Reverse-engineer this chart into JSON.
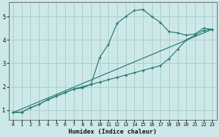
{
  "xlabel": "Humidex (Indice chaleur)",
  "bg_color": "#cce8e8",
  "grid_color": "#aacccc",
  "line_color": "#2a7870",
  "xlim": [
    -0.5,
    23.5
  ],
  "ylim": [
    0.6,
    5.6
  ],
  "yticks": [
    1,
    2,
    3,
    4,
    5
  ],
  "xticks": [
    0,
    1,
    2,
    3,
    4,
    5,
    6,
    7,
    8,
    9,
    10,
    11,
    12,
    13,
    14,
    15,
    16,
    17,
    18,
    19,
    20,
    21,
    22,
    23
  ],
  "line1_x": [
    0,
    1,
    2,
    3,
    4,
    5,
    6,
    7,
    8,
    9,
    10,
    11,
    12,
    13,
    14,
    15,
    16,
    17,
    18,
    19,
    20,
    21,
    22,
    23
  ],
  "line1_y": [
    0.9,
    0.92,
    1.1,
    1.25,
    1.45,
    1.6,
    1.75,
    1.9,
    1.95,
    2.1,
    3.25,
    3.8,
    4.7,
    5.0,
    5.25,
    5.3,
    5.0,
    4.75,
    4.35,
    4.3,
    4.2,
    4.25,
    4.5,
    4.45
  ],
  "line2_x": [
    0,
    1,
    2,
    3,
    4,
    5,
    6,
    7,
    8,
    9,
    10,
    11,
    12,
    13,
    14,
    15,
    16,
    17,
    18,
    19,
    20,
    21,
    22,
    23
  ],
  "line2_y": [
    0.9,
    0.92,
    1.1,
    1.25,
    1.45,
    1.6,
    1.75,
    1.9,
    2.0,
    2.1,
    2.2,
    2.3,
    2.4,
    2.5,
    2.6,
    2.7,
    2.8,
    2.9,
    3.2,
    3.6,
    4.0,
    4.2,
    4.4,
    4.45
  ],
  "line3_x": [
    0,
    23
  ],
  "line3_y": [
    0.9,
    4.45
  ]
}
